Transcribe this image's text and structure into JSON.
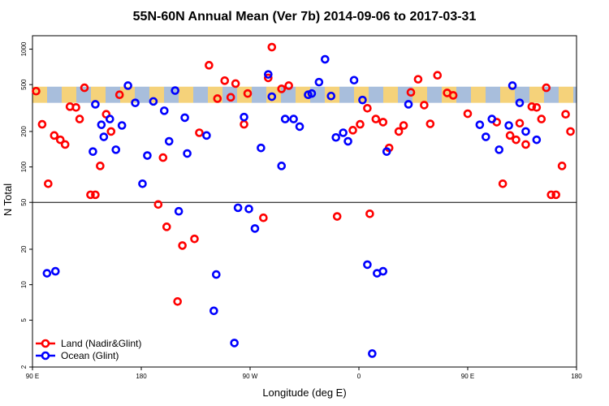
{
  "chart_data": {
    "type": "scatter",
    "title": "55N-60N Annual Mean (Ver 7b)   2014-09-06 to 2017-03-31",
    "xlabel": "Longitude (deg E)",
    "ylabel": "N Total",
    "x_scale": "linear",
    "y_scale": "log",
    "xlim": [
      90,
      540
    ],
    "ylim": [
      2,
      1300
    ],
    "x_ticks": [
      {
        "value": 90,
        "label": "90 E"
      },
      {
        "value": 180,
        "label": "180"
      },
      {
        "value": 270,
        "label": "90 W"
      },
      {
        "value": 360,
        "label": "0"
      },
      {
        "value": 450,
        "label": "90 E"
      },
      {
        "value": 540,
        "label": "180"
      }
    ],
    "y_ticks": [
      {
        "value": 2,
        "label": "2"
      },
      {
        "value": 5,
        "label": "5"
      },
      {
        "value": 10,
        "label": "10"
      },
      {
        "value": 20,
        "label": "20"
      },
      {
        "value": 50,
        "label": "50"
      },
      {
        "value": 100,
        "label": "100"
      },
      {
        "value": 200,
        "label": "200"
      },
      {
        "value": 500,
        "label": "500"
      },
      {
        "value": 1000,
        "label": "1000"
      }
    ],
    "reference_line": 50,
    "band": {
      "low": 350,
      "high": 480,
      "colors": [
        "#f5d27a",
        "#a8bedc"
      ]
    },
    "legend_position": "bottom-left",
    "series": [
      {
        "name": "Land (Nadir&Glint)",
        "color": "#ff0000",
        "x": [
          93,
          98,
          103,
          108,
          113,
          117,
          121,
          126,
          129,
          133,
          138,
          142,
          146,
          151,
          155,
          162,
          194,
          198,
          201,
          210,
          214,
          224,
          228,
          236,
          243,
          249,
          254,
          258,
          265,
          268,
          281,
          285,
          288,
          296,
          302,
          342,
          355,
          361,
          367,
          369,
          374,
          380,
          385,
          393,
          397,
          403,
          409,
          414,
          419,
          425,
          433,
          438,
          450,
          474,
          479,
          485,
          490,
          498,
          493,
          519,
          503,
          507,
          511,
          515,
          523,
          528,
          531,
          535
        ],
        "y": [
          440,
          230,
          72,
          185,
          170,
          155,
          325,
          320,
          255,
          470,
          58,
          58,
          102,
          280,
          200,
          410,
          48,
          120,
          31,
          7.2,
          21.5,
          24.5,
          195,
          730,
          380,
          540,
          390,
          510,
          230,
          420,
          37,
          570,
          1040,
          460,
          490,
          38,
          205,
          230,
          315,
          40,
          255,
          240,
          145,
          200,
          225,
          430,
          555,
          335,
          232,
          600,
          425,
          405,
          283,
          240,
          72,
          185,
          170,
          155,
          235,
          58,
          325,
          320,
          255,
          470,
          58,
          102,
          280,
          200
        ]
      },
      {
        "name": "Ocean (Glint)",
        "color": "#0000ff",
        "x": [
          102,
          109,
          140,
          142,
          147,
          149,
          154,
          159,
          164,
          169,
          175,
          181,
          185,
          190,
          199,
          203,
          208,
          211,
          216,
          218,
          234,
          240,
          242,
          257,
          260,
          265,
          269,
          274,
          279,
          285,
          288,
          296,
          299,
          306,
          311,
          318,
          321,
          327,
          332,
          337,
          341,
          347,
          351,
          356,
          363,
          367,
          371,
          375,
          380,
          383,
          401,
          460,
          465,
          470,
          476,
          484,
          487,
          493,
          498,
          507
        ],
        "y": [
          12.5,
          13,
          135,
          340,
          228,
          180,
          255,
          140,
          225,
          490,
          350,
          72,
          125,
          360,
          300,
          165,
          445,
          42,
          262,
          130,
          185,
          6,
          12.2,
          3.2,
          45,
          265,
          44,
          30,
          145,
          610,
          395,
          102,
          255,
          255,
          220,
          410,
          420,
          525,
          820,
          400,
          178,
          195,
          165,
          545,
          370,
          14.8,
          2.6,
          12.5,
          13,
          135,
          340,
          228,
          180,
          255,
          140,
          225,
          490,
          350,
          200,
          170
        ]
      }
    ]
  }
}
